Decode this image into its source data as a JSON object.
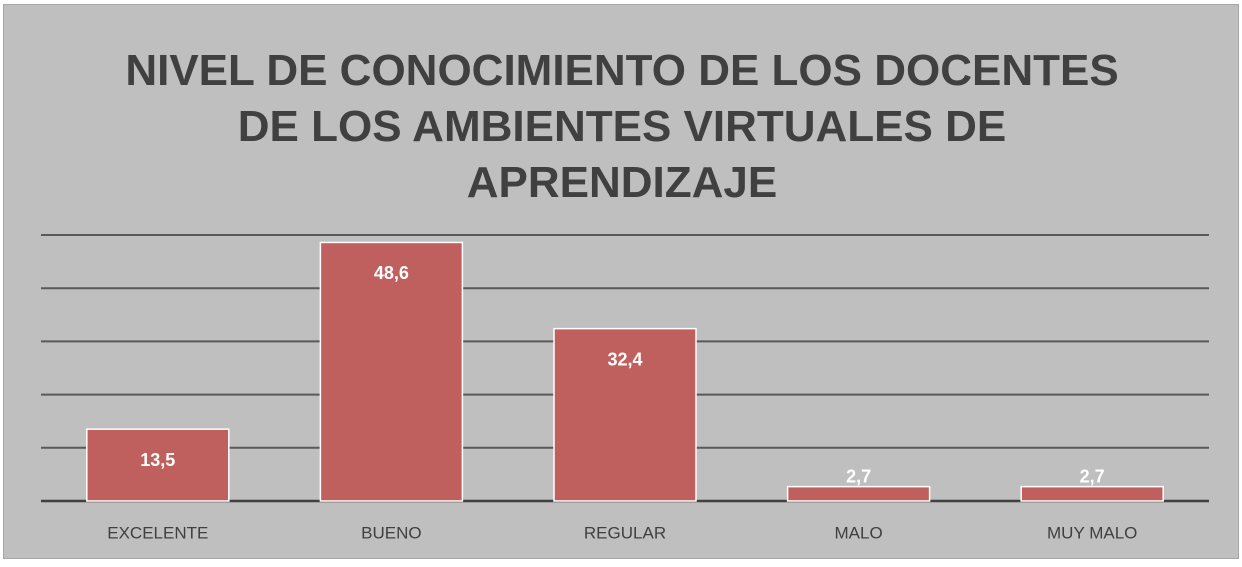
{
  "chart_data": {
    "type": "bar",
    "title": "NIVEL DE CONOCIMIENTO DE LOS DOCENTES DE LOS AMBIENTES VIRTUALES DE APRENDIZAJE",
    "categories": [
      "EXCELENTE",
      "BUENO",
      "REGULAR",
      "MALO",
      "MUY MALO"
    ],
    "values": [
      13.5,
      48.6,
      32.4,
      2.7,
      2.7
    ],
    "value_labels": [
      "13,5",
      "48,6",
      "32,4",
      "2,7",
      "2,7"
    ],
    "color": "#c0605e",
    "ylim": [
      0,
      50
    ],
    "yticks": [
      0,
      10,
      20,
      30,
      40,
      50
    ],
    "grid": true
  }
}
